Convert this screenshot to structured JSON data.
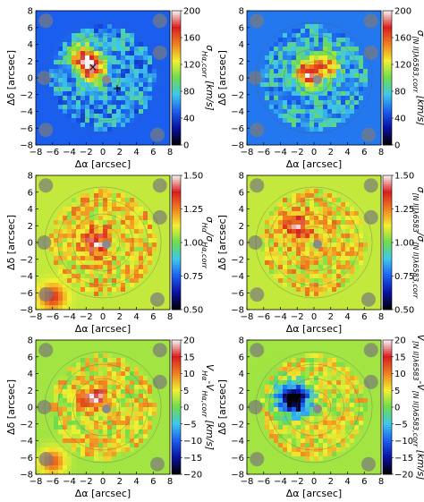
{
  "figure": {
    "columns": 2,
    "rows": 3
  },
  "chart_data": [
    {
      "type": "heatmap",
      "panel": "row1-left",
      "xlabel": "Δα [arcsec]",
      "ylabel": "Δδ [arcsec]",
      "xlim": [
        -8,
        8
      ],
      "ylim": [
        -8,
        8
      ],
      "xticks": [
        "−8",
        "−6",
        "−4",
        "−2",
        "0",
        "2",
        "4",
        "6",
        "8"
      ],
      "yticks": [
        "8",
        "6",
        "4",
        "2",
        "0",
        "−2",
        "−4",
        "−6",
        "−8"
      ],
      "colorbar": {
        "label": "σ_{Hα,corr} [km/s]",
        "range": [
          0,
          200
        ],
        "ticks": [
          "200",
          "160",
          "120",
          "80",
          "40",
          "0"
        ]
      },
      "background_level": 0.25,
      "hot_spots": [
        {
          "x": -1.3,
          "y": 1.0,
          "level": 0.88
        },
        {
          "x": -2.5,
          "y": 2.5,
          "level": 0.72
        }
      ],
      "markers": [
        {
          "symbol": "x",
          "x": -1.2,
          "y": 1.3
        },
        {
          "symbol": "+",
          "x": 1.7,
          "y": -1.3
        }
      ]
    },
    {
      "type": "heatmap",
      "panel": "row1-right",
      "xlabel": "Δα [arcsec]",
      "ylabel": "Δδ [arcsec]",
      "xlim": [
        -8,
        8
      ],
      "ylim": [
        -8,
        8
      ],
      "xticks": [
        "−8",
        "−6",
        "−4",
        "−2",
        "0",
        "2",
        "4",
        "6",
        "8"
      ],
      "yticks": [
        "8",
        "6",
        "4",
        "2",
        "0",
        "−2",
        "−4",
        "−6",
        "−8"
      ],
      "colorbar": {
        "label": "σ_{[N II]λ6583,corr} [km/s]",
        "range": [
          0,
          200
        ],
        "ticks": [
          "200",
          "160",
          "120",
          "80",
          "40",
          "0"
        ]
      },
      "background_level": 0.28,
      "hot_spots": [
        {
          "x": -0.8,
          "y": 0.5,
          "level": 0.85
        },
        {
          "x": 1.5,
          "y": 1.5,
          "level": 0.7
        }
      ],
      "markers": []
    },
    {
      "type": "heatmap",
      "panel": "row2-left",
      "xlabel": "Δα [arcsec]",
      "ylabel": "Δδ [arcsec]",
      "xlim": [
        -8,
        8
      ],
      "ylim": [
        -8,
        8
      ],
      "xticks": [
        "−8",
        "−6",
        "−4",
        "−2",
        "0",
        "2",
        "4",
        "6",
        "8"
      ],
      "yticks": [
        "8",
        "6",
        "4",
        "2",
        "0",
        "−2",
        "−4",
        "−6",
        "−8"
      ],
      "colorbar": {
        "label": "σ_{Hα}/σ_{Hα,corr}",
        "range": [
          0.5,
          1.5
        ],
        "ticks": [
          "1.50",
          "1.25",
          "1.00",
          "0.75",
          "0.50"
        ]
      },
      "background_level": 0.58,
      "hot_spots": [
        {
          "x": -1.0,
          "y": 0.0,
          "level": 0.85
        },
        {
          "x": -6.0,
          "y": -6.5,
          "level": 0.85
        }
      ],
      "markers": []
    },
    {
      "type": "heatmap",
      "panel": "row2-right",
      "xlabel": "Δα [arcsec]",
      "ylabel": "Δδ [arcsec]",
      "xlim": [
        -8,
        8
      ],
      "ylim": [
        -8,
        8
      ],
      "xticks": [
        "−8",
        "−6",
        "−4",
        "−2",
        "0",
        "2",
        "4",
        "6",
        "8"
      ],
      "yticks": [
        "8",
        "6",
        "4",
        "2",
        "0",
        "−2",
        "−4",
        "−6",
        "−8"
      ],
      "colorbar": {
        "label": "σ_{[N II]λ6583}/σ_{[N II]λ6583,corr}",
        "range": [
          0.5,
          1.5
        ],
        "ticks": [
          "1.50",
          "1.25",
          "1.00",
          "0.75",
          "0.50"
        ]
      },
      "background_level": 0.58,
      "hot_spots": [
        {
          "x": -2.0,
          "y": 2.0,
          "level": 0.85
        }
      ],
      "markers": []
    },
    {
      "type": "heatmap",
      "panel": "row3-left",
      "xlabel": "Δα [arcsec]",
      "ylabel": "Δδ [arcsec]",
      "xlim": [
        -8,
        8
      ],
      "ylim": [
        -8,
        8
      ],
      "xticks": [
        "−8",
        "−6",
        "−4",
        "−2",
        "0",
        "2",
        "4",
        "6",
        "8"
      ],
      "yticks": [
        "8",
        "6",
        "4",
        "2",
        "0",
        "−2",
        "−4",
        "−6",
        "−8"
      ],
      "colorbar": {
        "label": "V_{Hα}-V_{Hα,corr} [km/s]",
        "range": [
          -20,
          20
        ],
        "ticks": [
          "20",
          "15",
          "10",
          "5",
          "0",
          "−5",
          "−10",
          "−15",
          "−20"
        ]
      },
      "background_level": 0.55,
      "hot_spots": [
        {
          "x": -1.0,
          "y": 1.0,
          "level": 0.85
        },
        {
          "x": -6.0,
          "y": -6.5,
          "level": 0.8
        }
      ],
      "markers": []
    },
    {
      "type": "heatmap",
      "panel": "row3-right",
      "xlabel": "Δα [arcsec]",
      "ylabel": "Δδ [arcsec]",
      "xlim": [
        -8,
        8
      ],
      "ylim": [
        -8,
        8
      ],
      "xticks": [
        "−8",
        "−6",
        "−4",
        "−2",
        "0",
        "2",
        "4",
        "6",
        "8"
      ],
      "yticks": [
        "8",
        "6",
        "4",
        "2",
        "0",
        "−2",
        "−4",
        "−6",
        "−8"
      ],
      "colorbar": {
        "label": "V_{[N II]λ6583}-V_{[N II]λ6583,corr} [km/s]",
        "range": [
          -20,
          20
        ],
        "ticks": [
          "20",
          "15",
          "10",
          "5",
          "0",
          "−5",
          "−10",
          "−15",
          "−20"
        ]
      },
      "background_level": 0.55,
      "cold_spots": [
        {
          "x": -2.0,
          "y": 0.5,
          "level": 0.1
        },
        {
          "x": -3.0,
          "y": 1.5,
          "level": 0.15
        }
      ],
      "hot_spots": [],
      "markers": []
    }
  ],
  "palette": [
    "#000000",
    "#0a10a0",
    "#1a5ef0",
    "#3fc7ea",
    "#6cdc4e",
    "#f2f030",
    "#f08020",
    "#d81e1e",
    "#f8f8f8"
  ]
}
